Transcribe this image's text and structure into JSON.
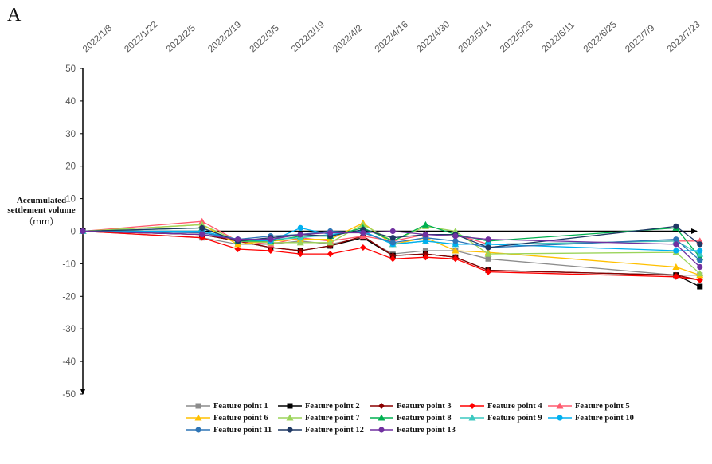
{
  "panel_label": "A",
  "chart_data": {
    "type": "line",
    "title": "",
    "ylabel_line1": "Accumulated",
    "ylabel_line2": "settlement volume",
    "ylabel_unit": "（mm）",
    "ylim": [
      -50,
      50
    ],
    "yticks": [
      50,
      40,
      30,
      20,
      10,
      0,
      -10,
      -20,
      -30,
      -40,
      -50
    ],
    "xticks": [
      "2022/1/8",
      "2022/1/22",
      "2022/2/5",
      "2022/2/19",
      "2022/3/5",
      "2022/3/19",
      "2022/4/2",
      "2022/4/16",
      "2022/4/30",
      "2022/5/14",
      "2022/5/28",
      "2022/6/11",
      "2022/6/25",
      "2022/7/9",
      "2022/7/23"
    ],
    "x": [
      "2022/1/8",
      "2022/2/17",
      "2022/3/1",
      "2022/3/12",
      "2022/3/22",
      "2022/4/1",
      "2022/4/12",
      "2022/4/22",
      "2022/5/3",
      "2022/5/13",
      "2022/5/24",
      "2022/7/26",
      "2022/8/3"
    ],
    "grid": false,
    "legend_position": "bottom",
    "series": [
      {
        "name": "Feature point 1",
        "color": "#8c8c8c",
        "marker": "square",
        "values": [
          0,
          -2,
          -4,
          -4,
          -3,
          -4,
          -2,
          -7,
          -6,
          -6,
          -8.5,
          -13.5,
          -13.5
        ]
      },
      {
        "name": "Feature point 2",
        "color": "#000000",
        "marker": "square",
        "values": [
          0,
          -1,
          -3,
          -5,
          -6,
          -4.5,
          -2,
          -7.5,
          -7,
          -8,
          -12,
          -13.5,
          -17
        ]
      },
      {
        "name": "Feature point 3",
        "color": "#8b0000",
        "marker": "diamond",
        "values": [
          0,
          -1,
          -3,
          -5,
          -6,
          -4.5,
          -1.5,
          -7.5,
          -7,
          -8,
          -12,
          -13.5,
          -15
        ]
      },
      {
        "name": "Feature point 4",
        "color": "#ff0000",
        "marker": "diamond",
        "values": [
          0,
          -2,
          -5.5,
          -6,
          -7,
          -7,
          -5,
          -8.5,
          -8,
          -8.5,
          -12.5,
          -14,
          -15
        ]
      },
      {
        "name": "Feature point 5",
        "color": "#ff5a6e",
        "marker": "triangle",
        "values": [
          0,
          3,
          -3,
          -4,
          -2,
          -3,
          -1.5,
          -3,
          -1,
          -1,
          -4,
          -3,
          -3
        ]
      },
      {
        "name": "Feature point 6",
        "color": "#ffc000",
        "marker": "triangle",
        "values": [
          0,
          2,
          -4,
          -3,
          -2.5,
          -2.5,
          2.5,
          -4,
          -2,
          -6,
          -6.5,
          -11,
          -13.5
        ]
      },
      {
        "name": "Feature point 7",
        "color": "#9bd45a",
        "marker": "triangle",
        "values": [
          0,
          2,
          -3,
          -3.5,
          -3.5,
          -3.5,
          2,
          -3,
          1.5,
          0,
          -7,
          -6.5,
          -13
        ]
      },
      {
        "name": "Feature point 8",
        "color": "#00b050",
        "marker": "triangle",
        "values": [
          0,
          1,
          -3,
          -3,
          -1.5,
          -1.5,
          1,
          -3,
          2,
          -1,
          -3,
          1,
          -8
        ]
      },
      {
        "name": "Feature point 9",
        "color": "#3cc8c0",
        "marker": "triangle",
        "values": [
          0,
          0,
          -2.5,
          -2.5,
          -2,
          -1,
          0,
          -4,
          -3,
          -4,
          -4,
          -3,
          -7
        ]
      },
      {
        "name": "Feature point 10",
        "color": "#00b0f0",
        "marker": "circle",
        "values": [
          0,
          0,
          -2.5,
          -3,
          1,
          -1,
          0,
          -4,
          -3,
          -4,
          -4,
          -6,
          -6
        ]
      },
      {
        "name": "Feature point 11",
        "color": "#2e75b6",
        "marker": "circle",
        "values": [
          0,
          -0.5,
          -2.5,
          -1.5,
          -1,
          0,
          -0.5,
          -3.5,
          -2,
          -3,
          -5,
          -2.5,
          -9
        ]
      },
      {
        "name": "Feature point 12",
        "color": "#1f3864",
        "marker": "circle",
        "values": [
          0,
          1,
          -3,
          -2,
          -1,
          -1.5,
          0.5,
          -2,
          -1,
          -1,
          -5,
          1.5,
          -4
        ]
      },
      {
        "name": "Feature point 13",
        "color": "#7030a0",
        "marker": "circle",
        "values": [
          0,
          -1,
          -2.5,
          -2.5,
          -1,
          -0.5,
          -0.5,
          0,
          -1,
          -1.5,
          -2.5,
          -4,
          -11
        ]
      }
    ]
  }
}
